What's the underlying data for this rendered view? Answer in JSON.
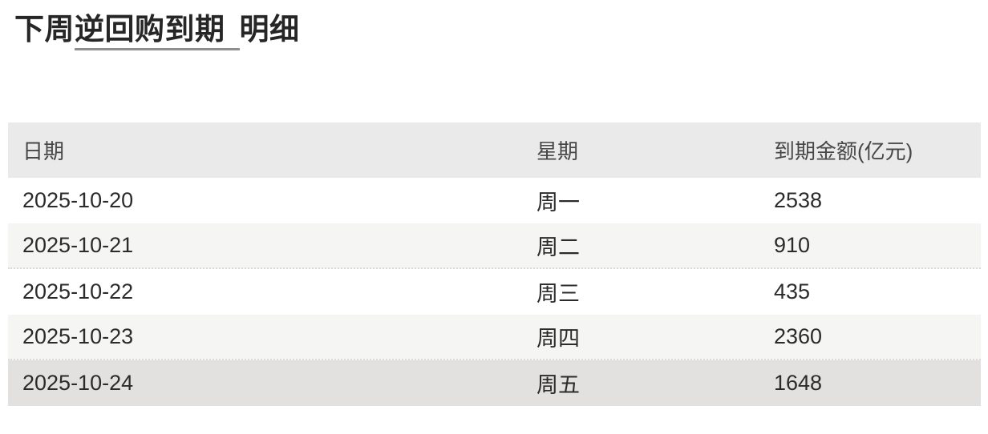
{
  "title": {
    "prefix": "下周",
    "underlined_term": "逆回购到期",
    "suffix": "明细"
  },
  "table": {
    "columns": [
      {
        "label": "日期"
      },
      {
        "label": "星期"
      },
      {
        "label": "到期金额(亿元)"
      }
    ],
    "rows": [
      {
        "date": "2025-10-20",
        "weekday": "周一",
        "amount": "2538"
      },
      {
        "date": "2025-10-21",
        "weekday": "周二",
        "amount": "910"
      },
      {
        "date": "2025-10-22",
        "weekday": "周三",
        "amount": "435"
      },
      {
        "date": "2025-10-23",
        "weekday": "周四",
        "amount": "2360"
      },
      {
        "date": "2025-10-24",
        "weekday": "周五",
        "amount": "1648"
      }
    ]
  },
  "colors": {
    "header_bg": "#eaeaea",
    "stripe_bg": "#f5f5f4",
    "last_row_bg": "#e2e1e0",
    "text": "#2b2b2b",
    "header_text": "#474747",
    "title_text": "#262626",
    "title_underline": "#8f8f8f",
    "weekday_underline": "#b3b3b3",
    "dotted_separator": "#dcdcdc"
  }
}
